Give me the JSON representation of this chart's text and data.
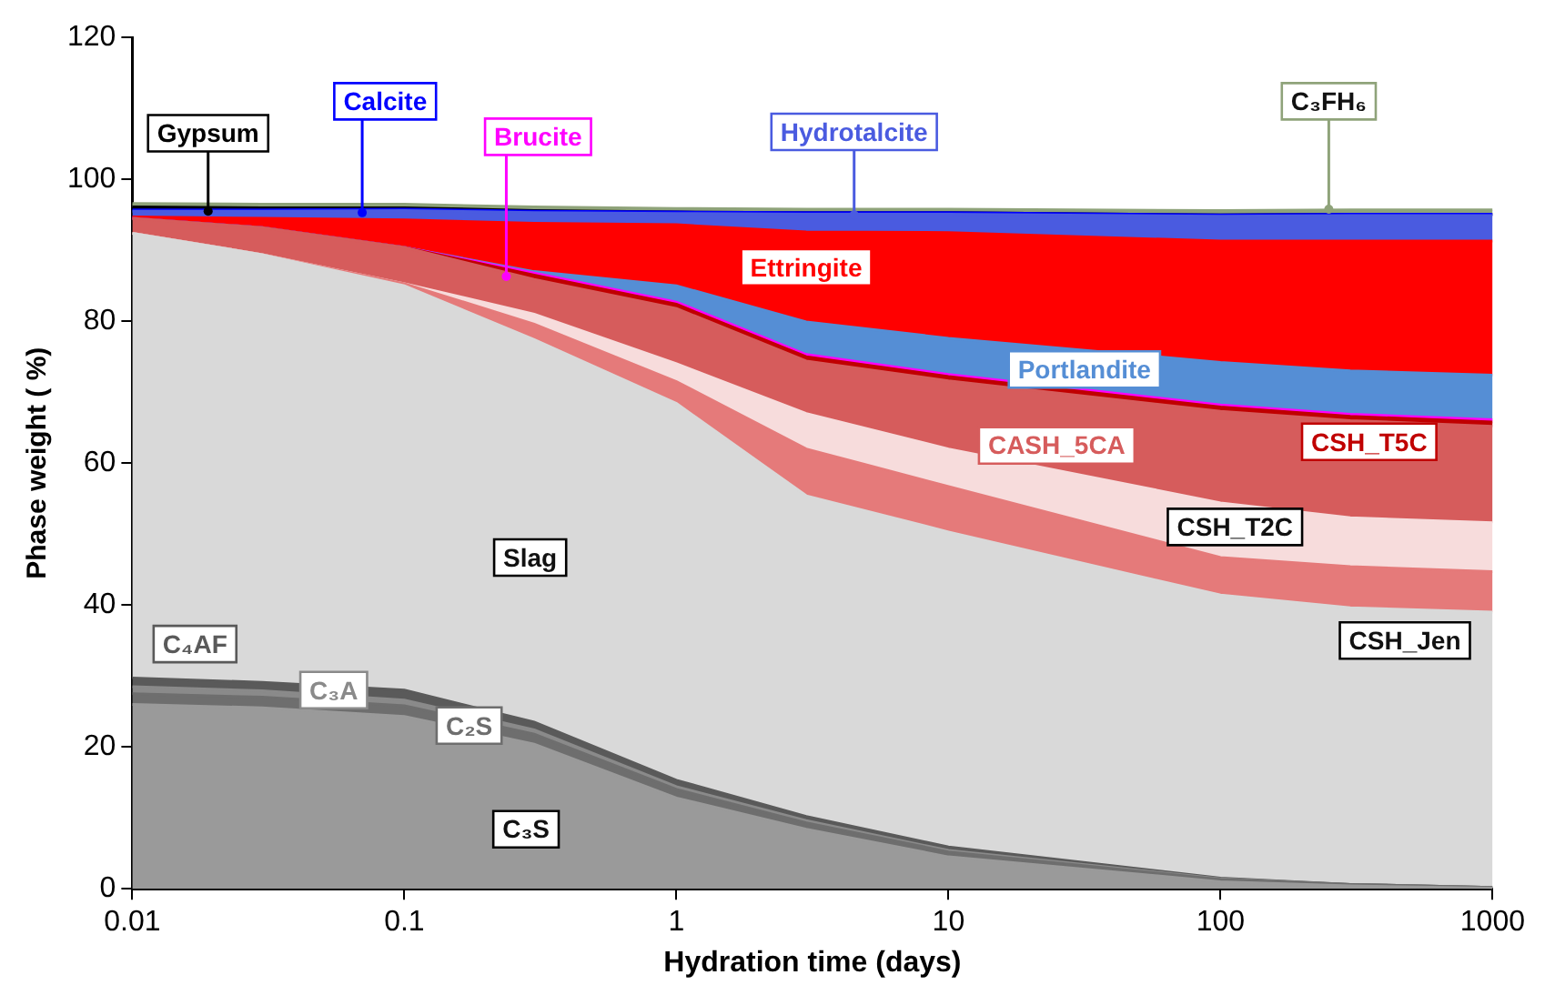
{
  "chart_data": {
    "type": "area",
    "stacked": true,
    "xlabel": "Hydration time (days)",
    "ylabel": "Phase weight ( %)",
    "log": "x",
    "x": [
      0.01,
      0.03,
      0.1,
      0.3,
      1,
      3,
      10,
      100,
      300,
      1000
    ],
    "xlim": [
      0.01,
      1000
    ],
    "xticks": [
      0.01,
      0.1,
      1,
      10,
      100,
      1000
    ],
    "ylim": [
      0,
      120
    ],
    "yticks": [
      0,
      20,
      40,
      60,
      80,
      100,
      120
    ],
    "grid": false,
    "legend": false,
    "series": [
      {
        "name": "C₃S",
        "color": "#9a9a9a",
        "values": [
          26,
          25.5,
          24.3,
          20.4,
          12.8,
          8.4,
          4.5,
          1,
          0.4,
          0.1
        ]
      },
      {
        "name": "C₂S",
        "color": "#6e6e6e",
        "values": [
          1.5,
          1.5,
          1.5,
          1.4,
          1.2,
          0.9,
          0.7,
          0.3,
          0.2,
          0.1
        ]
      },
      {
        "name": "C₃A",
        "color": "#8a8a8a",
        "values": [
          1,
          0.9,
          0.8,
          0.6,
          0.4,
          0.3,
          0.2,
          0.1,
          0,
          0
        ]
      },
      {
        "name": "C₄AF",
        "color": "#5a5a5a",
        "values": [
          1.2,
          1.2,
          1.4,
          1.1,
          0.9,
          0.6,
          0.5,
          0.1,
          0,
          0
        ]
      },
      {
        "name": "Slag",
        "color": "#d9d9d9",
        "values": [
          62.7,
          60.3,
          57,
          53.9,
          53.1,
          45.2,
          44.4,
          39.9,
          39,
          38.8
        ]
      },
      {
        "name": "CSH_Jen",
        "color": "#e57a7a",
        "values": [
          0,
          0,
          0.3,
          2.2,
          3.1,
          6.6,
          6.4,
          5.3,
          5.8,
          5.7
        ]
      },
      {
        "name": "CSH_T2C",
        "color": "#f7dcdc",
        "values": [
          0,
          0,
          0,
          1.4,
          2.5,
          5,
          5.3,
          7.7,
          6.9,
          6.9
        ]
      },
      {
        "name": "CASH_5CA",
        "color": "#d65c5c",
        "values": [
          2.1,
          3.8,
          5.1,
          4.9,
          7.8,
          7.4,
          9.6,
          12.9,
          13.7,
          13.6
        ]
      },
      {
        "name": "CSH_T5C",
        "color": "#c00000",
        "values": [
          0,
          0,
          0,
          0.6,
          0.6,
          0.6,
          0.6,
          0.6,
          0.6,
          0.6
        ]
      },
      {
        "name": "Brucite",
        "color": "#ff00ff",
        "values": [
          0,
          0,
          0,
          0.3,
          0.3,
          0.3,
          0.3,
          0.3,
          0.3,
          0.3
        ]
      },
      {
        "name": "Portlandite",
        "color": "#558ed5",
        "values": [
          0,
          0,
          0,
          0.2,
          2.3,
          4.6,
          5.1,
          6,
          6.1,
          6.3
        ]
      },
      {
        "name": "Ettringite",
        "color": "#ff0000",
        "values": [
          0.2,
          1.3,
          3.9,
          6.8,
          8.6,
          12.7,
          14.9,
          17.1,
          18.3,
          18.9
        ]
      },
      {
        "name": "Hydrotalcite",
        "color": "#4a5be0",
        "values": [
          0.8,
          1,
          1.3,
          1.5,
          1.6,
          2.5,
          2.6,
          3.5,
          3.6,
          3.6
        ]
      },
      {
        "name": "Calcite",
        "color": "#0000ff",
        "values": [
          0.2,
          0.2,
          0.2,
          0.2,
          0.2,
          0.2,
          0.2,
          0.2,
          0.2,
          0.2
        ]
      },
      {
        "name": "Gypsum",
        "color": "#000000",
        "values": [
          0.4,
          0.3,
          0.2,
          0.1,
          0,
          0,
          0,
          0,
          0,
          0
        ]
      },
      {
        "name": "C₃FH₆",
        "color": "#8fa37a",
        "values": [
          0.5,
          0.5,
          0.5,
          0.5,
          0.5,
          0.5,
          0.5,
          0.6,
          0.6,
          0.6
        ]
      }
    ]
  }
}
